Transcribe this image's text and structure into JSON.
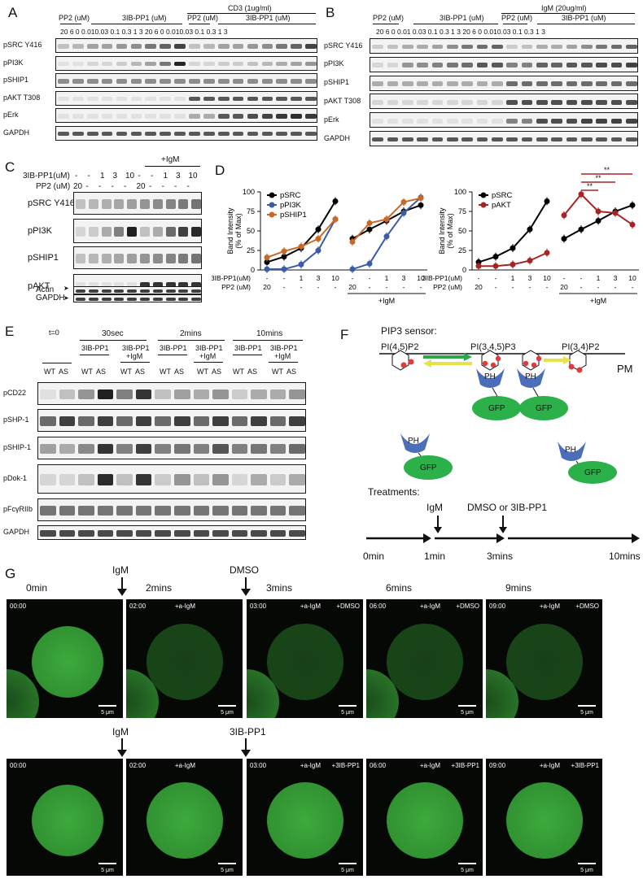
{
  "panels": {
    "A": {
      "label": "A",
      "header": {
        "pp2": "PP2 (uM)",
        "ib": "3IB-PP1 (uM)",
        "cd3": "CD3 (1ug/ml)",
        "pp2b": "PP2 (uM)",
        "ib2": "3IB-PP1 (uM)"
      },
      "doses": "20  6    0  0.010.03 0.1 0.3  1    3    20   6    0  0.010.03 0.1 0.3  1    3",
      "rows": [
        "pSRC Y416",
        "pPI3K",
        "pSHIP1",
        "pAKT T308",
        "pErk",
        "GAPDH"
      ]
    },
    "B": {
      "label": "B",
      "header": {
        "pp2": "PP2 (uM)",
        "ib": "3IB-PP1 (uM)",
        "igm": "IgM (20ug/ml)",
        "pp2b": "PP2 (uM)",
        "ib2": "3IB-PP1 (uM)"
      },
      "doses": "20   6    0  0.01 0.03 0.1 0.3  1    3    20   6    0  0.010.03 0.1 0.3  1    3",
      "rows": [
        "pSRC Y416",
        "pPI3K",
        "pSHIP1",
        "pAKT T308",
        "pErk",
        "GAPDH"
      ]
    },
    "C": {
      "label": "C",
      "igm": "+IgM",
      "ib_label": "3IB-PP1(uM)",
      "ib_vals": [
        "-",
        "-",
        "1",
        "3",
        "10",
        "-",
        "-",
        "1",
        "3",
        "10"
      ],
      "pp2_label": "PP2 (uM)",
      "pp2_vals": [
        "20",
        "-",
        "-",
        "-",
        "-",
        "20",
        "-",
        "-",
        "-",
        "-"
      ],
      "rows": [
        "pSRC Y416",
        "pPI3K",
        "pSHIP1",
        "pAKT",
        "Actin",
        "GAPDH"
      ]
    },
    "D": {
      "label": "D"
    },
    "E": {
      "label": "E",
      "t0": "t=0",
      "times": [
        "30sec",
        "2mins",
        "10mins"
      ],
      "groups": [
        "3IB-PP1",
        "3IB-PP1\n+IgM",
        "3IB-PP1",
        "3IB-PP1\n+IgM",
        "3IB-PP1",
        "3IB-PP1\n+IgM"
      ],
      "wtas": [
        "WT",
        "AS"
      ],
      "rows": [
        "pCD22",
        "pSHP-1",
        "pSHIP-1",
        "pDok-1",
        "pFcγRIIb",
        "GAPDH"
      ]
    },
    "F": {
      "label": "F",
      "title": "PIP3 sensor:",
      "pi45": "PI(4,5)P2",
      "pi345": "PI(3,4,5)P3",
      "pi34": "PI(3,4)P2",
      "pm": "PM",
      "ph": "PH",
      "gfp": "GFP",
      "treatments": "Treatments:",
      "t_igm": "IgM",
      "t_dmso": "DMSO or 3IB-PP1",
      "times": [
        "0min",
        "1min",
        "3mins",
        "10mins"
      ]
    },
    "G": {
      "label": "G",
      "top_times": [
        "0min",
        "2mins",
        "3mins",
        "6mins",
        "9mins"
      ],
      "igm": "IgM",
      "dmso": "DMSO",
      "ib": "3IB-PP1",
      "row1": [
        {
          "ts": "00:00",
          "a": "",
          "b": ""
        },
        {
          "ts": "02:00",
          "a": "+a-IgM",
          "b": ""
        },
        {
          "ts": "03:00",
          "a": "+a-IgM",
          "b": "+DMSO"
        },
        {
          "ts": "06:00",
          "a": "+a-IgM",
          "b": "+DMSO"
        },
        {
          "ts": "09:00",
          "a": "+a-IgM",
          "b": "+DMSO"
        }
      ],
      "row2": [
        {
          "ts": "00:00",
          "a": "",
          "b": ""
        },
        {
          "ts": "02:00",
          "a": "+a-IgM",
          "b": ""
        },
        {
          "ts": "03:00",
          "a": "+a-IgM",
          "b": "+3IB-PP1"
        },
        {
          "ts": "06:00",
          "a": "+a-IgM",
          "b": "+3IB-PP1"
        },
        {
          "ts": "09:00",
          "a": "+a-IgM",
          "b": "+3IB-PP1"
        }
      ],
      "scalebar": "5 μm"
    }
  },
  "chart_data": [
    {
      "type": "line",
      "ylabel": "Band Intensity\n(% of Max)",
      "ylim": [
        0,
        100
      ],
      "yticks": [
        0,
        25,
        50,
        75,
        100
      ],
      "x_row1_label": "3IB-PP1(uM)",
      "x_row1": [
        "-",
        "-",
        "1",
        "3",
        "10",
        "-",
        "-",
        "1",
        "3",
        "10"
      ],
      "x_row2_label": "PP2 (uM)",
      "x_row2": [
        "20",
        "-",
        "-",
        "-",
        "-",
        "20",
        "-",
        "-",
        "-",
        "-"
      ],
      "group_label": "+IgM",
      "series": [
        {
          "name": "pSRC",
          "color": "#000000",
          "values": [
            10,
            17,
            28,
            52,
            88,
            40,
            52,
            63,
            75,
            83
          ]
        },
        {
          "name": "pPI3K",
          "color": "#3b5ba8",
          "values": [
            1,
            1,
            7,
            25,
            65,
            1,
            8,
            43,
            73,
            93
          ]
        },
        {
          "name": "pSHIP1",
          "color": "#c8692a",
          "values": [
            16,
            24,
            30,
            40,
            65,
            36,
            60,
            65,
            87,
            92
          ]
        }
      ]
    },
    {
      "type": "line",
      "ylabel": "Band Intensity\n(% of Max)",
      "ylim": [
        0,
        100
      ],
      "yticks": [
        0,
        25,
        50,
        75,
        100
      ],
      "x_row1_label": "3IB-PP1(uM)",
      "x_row1": [
        "-",
        "-",
        "1",
        "3",
        "10",
        "-",
        "-",
        "1",
        "3",
        "10"
      ],
      "x_row2_label": "PP2 (uM)",
      "x_row2": [
        "20",
        "-",
        "-",
        "-",
        "-",
        "20",
        "-",
        "-",
        "-",
        "-"
      ],
      "group_label": "+IgM",
      "significance": [
        "**",
        "**",
        "**"
      ],
      "series": [
        {
          "name": "pSRC",
          "color": "#000000",
          "values": [
            10,
            17,
            28,
            52,
            88,
            40,
            52,
            63,
            75,
            83
          ]
        },
        {
          "name": "pAKT",
          "color": "#a82424",
          "values": [
            5,
            5,
            7,
            12,
            22,
            70,
            97,
            75,
            73,
            58
          ]
        }
      ]
    }
  ]
}
